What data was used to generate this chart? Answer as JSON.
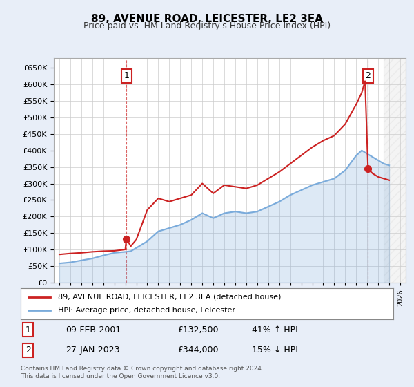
{
  "title": "89, AVENUE ROAD, LEICESTER, LE2 3EA",
  "subtitle": "Price paid vs. HM Land Registry's House Price Index (HPI)",
  "hpi_label": "HPI: Average price, detached house, Leicester",
  "price_label": "89, AVENUE ROAD, LEICESTER, LE2 3EA (detached house)",
  "annotation1_date": "09-FEB-2001",
  "annotation1_price": "£132,500",
  "annotation1_hpi": "41% ↑ HPI",
  "annotation2_date": "27-JAN-2023",
  "annotation2_price": "£344,000",
  "annotation2_hpi": "15% ↓ HPI",
  "footer": "Contains HM Land Registry data © Crown copyright and database right 2024.\nThis data is licensed under the Open Government Licence v3.0.",
  "ylim": [
    0,
    680000
  ],
  "yticks": [
    0,
    50000,
    100000,
    150000,
    200000,
    250000,
    300000,
    350000,
    400000,
    450000,
    500000,
    550000,
    600000,
    650000
  ],
  "year_start": 1995,
  "year_end": 2026,
  "bg_color": "#e8eef8",
  "plot_bg_color": "#ffffff",
  "hpi_color": "#7aabdb",
  "price_color": "#cc2222",
  "sale1_year": 2001.1,
  "sale1_price": 132500,
  "sale2_year": 2023.07,
  "sale2_price": 344000,
  "hpi_data": [
    [
      1995,
      58000
    ],
    [
      1996,
      61000
    ],
    [
      1997,
      67000
    ],
    [
      1998,
      73000
    ],
    [
      1999,
      82000
    ],
    [
      2000,
      90000
    ],
    [
      2001,
      93000
    ],
    [
      2001.5,
      95000
    ],
    [
      2002,
      105000
    ],
    [
      2003,
      125000
    ],
    [
      2004,
      155000
    ],
    [
      2005,
      165000
    ],
    [
      2006,
      175000
    ],
    [
      2007,
      190000
    ],
    [
      2008,
      210000
    ],
    [
      2009,
      195000
    ],
    [
      2010,
      210000
    ],
    [
      2011,
      215000
    ],
    [
      2012,
      210000
    ],
    [
      2013,
      215000
    ],
    [
      2014,
      230000
    ],
    [
      2015,
      245000
    ],
    [
      2016,
      265000
    ],
    [
      2017,
      280000
    ],
    [
      2018,
      295000
    ],
    [
      2019,
      305000
    ],
    [
      2020,
      315000
    ],
    [
      2021,
      340000
    ],
    [
      2022,
      385000
    ],
    [
      2022.5,
      400000
    ],
    [
      2023,
      390000
    ],
    [
      2023.5,
      380000
    ],
    [
      2024,
      370000
    ],
    [
      2024.5,
      360000
    ],
    [
      2025,
      355000
    ]
  ],
  "price_data": [
    [
      1995,
      85000
    ],
    [
      1996,
      88000
    ],
    [
      1997,
      90000
    ],
    [
      1998,
      93000
    ],
    [
      1999,
      95000
    ],
    [
      2000,
      96000
    ],
    [
      2001,
      100000
    ],
    [
      2001.1,
      132500
    ],
    [
      2001.5,
      110000
    ],
    [
      2002,
      130000
    ],
    [
      2003,
      220000
    ],
    [
      2004,
      255000
    ],
    [
      2005,
      245000
    ],
    [
      2006,
      255000
    ],
    [
      2007,
      265000
    ],
    [
      2008,
      300000
    ],
    [
      2009,
      270000
    ],
    [
      2010,
      295000
    ],
    [
      2011,
      290000
    ],
    [
      2012,
      285000
    ],
    [
      2013,
      295000
    ],
    [
      2014,
      315000
    ],
    [
      2015,
      335000
    ],
    [
      2016,
      360000
    ],
    [
      2017,
      385000
    ],
    [
      2018,
      410000
    ],
    [
      2019,
      430000
    ],
    [
      2020,
      445000
    ],
    [
      2021,
      480000
    ],
    [
      2022,
      540000
    ],
    [
      2022.5,
      575000
    ],
    [
      2022.8,
      610000
    ],
    [
      2023.07,
      344000
    ],
    [
      2023.5,
      330000
    ],
    [
      2024,
      320000
    ],
    [
      2024.5,
      315000
    ],
    [
      2025,
      310000
    ]
  ]
}
